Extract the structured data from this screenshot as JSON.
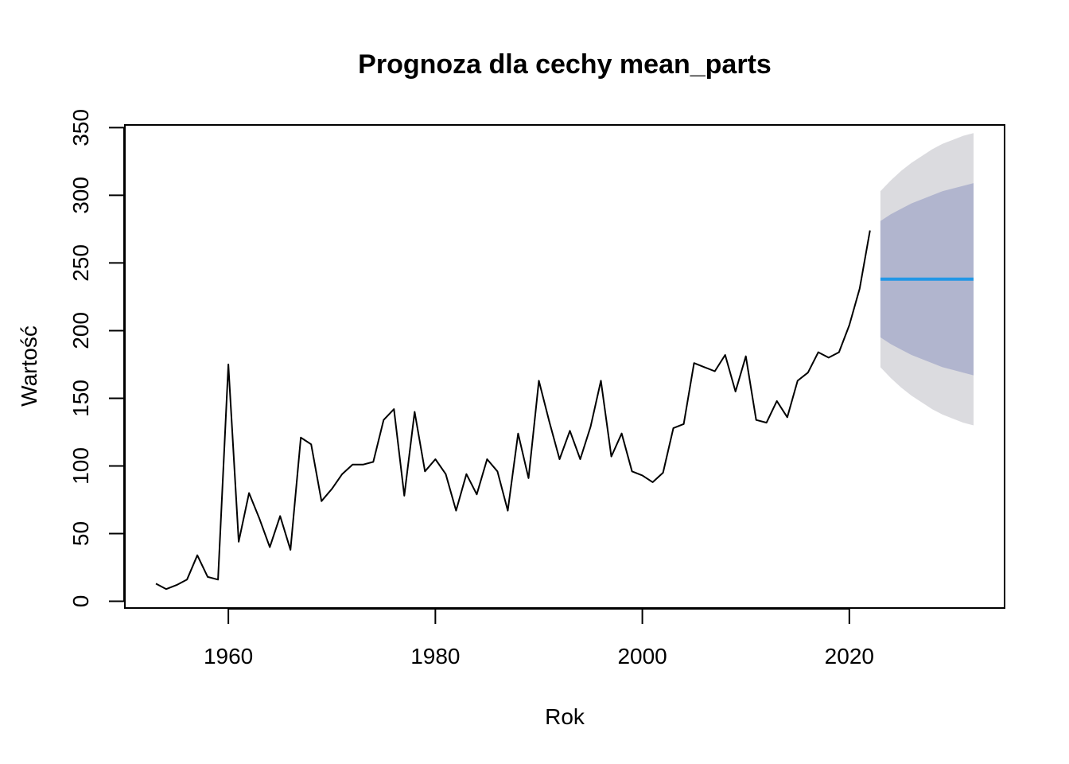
{
  "chart_data": {
    "type": "line",
    "title": "Prognoza dla cechy mean_parts",
    "xlabel": "Rok",
    "ylabel": "Wartość",
    "xlim": [
      1950,
      2035
    ],
    "ylim": [
      -5,
      352
    ],
    "x_ticks": [
      1960,
      1980,
      2000,
      2020
    ],
    "x_tick_labels": [
      "1960",
      "1980",
      "2000",
      "2020"
    ],
    "y_ticks": [
      0,
      50,
      100,
      150,
      200,
      250,
      300,
      350
    ],
    "y_tick_labels": [
      "0",
      "50",
      "100",
      "150",
      "200",
      "250",
      "300",
      "350"
    ],
    "grid": false,
    "series": [
      {
        "role": "observed",
        "color": "#000000",
        "x": [
          1953,
          1954,
          1955,
          1956,
          1957,
          1958,
          1959,
          1960,
          1961,
          1962,
          1963,
          1964,
          1965,
          1966,
          1967,
          1968,
          1969,
          1970,
          1971,
          1972,
          1973,
          1974,
          1975,
          1976,
          1977,
          1978,
          1979,
          1980,
          1981,
          1982,
          1983,
          1984,
          1985,
          1986,
          1987,
          1988,
          1989,
          1990,
          1991,
          1992,
          1993,
          1994,
          1995,
          1996,
          1997,
          1998,
          1999,
          2000,
          2001,
          2002,
          2003,
          2004,
          2005,
          2006,
          2007,
          2008,
          2009,
          2010,
          2011,
          2012,
          2013,
          2014,
          2015,
          2016,
          2017,
          2018,
          2019,
          2020,
          2021,
          2022
        ],
        "y": [
          13,
          9,
          12,
          16,
          34,
          18,
          16,
          175,
          44,
          80,
          61,
          40,
          63,
          38,
          121,
          116,
          74,
          83,
          94,
          101,
          101,
          103,
          134,
          142,
          78,
          140,
          96,
          105,
          94,
          67,
          94,
          79,
          105,
          96,
          67,
          124,
          91,
          163,
          133,
          105,
          126,
          105,
          129,
          163,
          107,
          124,
          96,
          93,
          88,
          95,
          128,
          131,
          176,
          173,
          170,
          182,
          155,
          181,
          134,
          132,
          148,
          136,
          163,
          169,
          184,
          180,
          184,
          204,
          231,
          274
        ]
      },
      {
        "role": "forecast",
        "color": "#2297e6",
        "x": [
          2023,
          2024,
          2025,
          2026,
          2027,
          2028,
          2029,
          2030,
          2031,
          2032
        ],
        "y": [
          238,
          238,
          238,
          238,
          238,
          238,
          238,
          238,
          238,
          238
        ]
      }
    ],
    "intervals": [
      {
        "level": 95,
        "color": "#dbdbdf",
        "x": [
          2023,
          2024,
          2025,
          2026,
          2027,
          2028,
          2029,
          2030,
          2031,
          2032
        ],
        "lower": [
          173,
          165,
          158,
          152,
          147,
          142,
          138,
          135,
          132,
          130
        ],
        "upper": [
          303,
          311,
          318,
          324,
          329,
          334,
          338,
          341,
          344,
          346
        ]
      },
      {
        "level": 80,
        "color": "#b1b5ce",
        "x": [
          2023,
          2024,
          2025,
          2026,
          2027,
          2028,
          2029,
          2030,
          2031,
          2032
        ],
        "lower": [
          195,
          190,
          186,
          182,
          179,
          176,
          173,
          171,
          169,
          167
        ],
        "upper": [
          281,
          286,
          290,
          294,
          297,
          300,
          303,
          305,
          307,
          309
        ]
      }
    ]
  }
}
